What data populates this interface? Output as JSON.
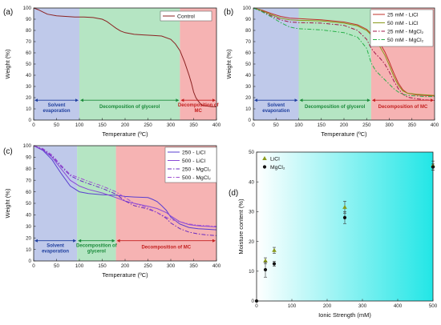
{
  "chart_data": [
    {
      "type": "line",
      "panel_label": "(a)",
      "xlabel": "Temperature (ºC)",
      "ylabel": "Weight (%)",
      "xlim": [
        0,
        400
      ],
      "ylim": [
        0,
        100
      ],
      "xticks": [
        0,
        50,
        100,
        150,
        200,
        250,
        300,
        350,
        400
      ],
      "yticks": [
        0,
        10,
        20,
        30,
        40,
        50,
        60,
        70,
        80,
        90,
        100
      ],
      "legend_position": "top-right",
      "regions": [
        {
          "label": "Solvent evaporation",
          "from": 0,
          "to": 100,
          "color": "#b4bfe6",
          "text_color": "#1f3f9e"
        },
        {
          "label": "Decomposition of glycerol",
          "from": 100,
          "to": 320,
          "color": "#a8e0b8",
          "text_color": "#1a8a3a"
        },
        {
          "label": "Decomposition of MC",
          "from": 320,
          "to": 400,
          "color": "#f4a6a6",
          "text_color": "#c42020"
        }
      ],
      "series": [
        {
          "name": "Control",
          "color": "#8b2222",
          "dash": "",
          "x": [
            0,
            10,
            20,
            30,
            50,
            70,
            90,
            110,
            130,
            150,
            160,
            170,
            180,
            190,
            200,
            220,
            240,
            260,
            280,
            300,
            310,
            320,
            330,
            340,
            345,
            350,
            355,
            360,
            365,
            370,
            380,
            390,
            400
          ],
          "y": [
            100,
            98.5,
            96.5,
            94.5,
            93,
            92.5,
            92,
            92,
            91.5,
            90,
            88,
            85,
            82,
            79.5,
            78,
            76.5,
            76,
            75.5,
            75,
            72,
            68,
            62,
            52,
            40,
            33,
            25,
            20,
            17,
            14.5,
            13,
            12.5,
            12,
            12
          ]
        }
      ]
    },
    {
      "type": "line",
      "panel_label": "(b)",
      "xlabel": "Temperature (ºC)",
      "ylabel": "Weight (%)",
      "xlim": [
        0,
        400
      ],
      "ylim": [
        0,
        100
      ],
      "xticks": [
        0,
        50,
        100,
        150,
        200,
        250,
        300,
        350,
        400
      ],
      "yticks": [
        0,
        10,
        20,
        30,
        40,
        50,
        60,
        70,
        80,
        90,
        100
      ],
      "legend_position": "top-right",
      "regions": [
        {
          "label": "Solvent evaporation",
          "from": 0,
          "to": 100,
          "color": "#b4bfe6",
          "text_color": "#1f3f9e"
        },
        {
          "label": "Decomposition of glycerol",
          "from": 100,
          "to": 260,
          "color": "#a8e0b8",
          "text_color": "#1a8a3a"
        },
        {
          "label": "Decomposition of MC",
          "from": 260,
          "to": 400,
          "color": "#f4a6a6",
          "text_color": "#c42020"
        }
      ],
      "series": [
        {
          "name": "25 mM - LiCl",
          "color": "#c0302a",
          "dash": "",
          "x": [
            0,
            20,
            40,
            60,
            80,
            100,
            150,
            200,
            230,
            250,
            260,
            270,
            280,
            290,
            300,
            310,
            320,
            330,
            340,
            360,
            380,
            400
          ],
          "y": [
            100,
            98,
            95,
            92.5,
            91,
            90.5,
            89.5,
            87.5,
            85,
            81,
            77,
            73,
            68,
            61,
            52,
            42,
            33,
            27,
            24,
            22.5,
            22,
            21.5
          ]
        },
        {
          "name": "50 mM - LiCl",
          "color": "#8a9a1a",
          "dash": "",
          "x": [
            0,
            20,
            40,
            60,
            80,
            100,
            150,
            200,
            230,
            250,
            260,
            270,
            280,
            290,
            300,
            310,
            320,
            330,
            340,
            360,
            380,
            400
          ],
          "y": [
            100,
            97.5,
            94,
            91,
            89.5,
            89,
            88.5,
            86.5,
            84,
            80,
            76,
            71,
            65,
            58,
            49,
            39,
            31,
            26,
            24,
            23,
            22.5,
            22
          ]
        },
        {
          "name": "25 mM - MgCl₂",
          "color": "#a01a4a",
          "dash": "5,2,1.5,2",
          "x": [
            0,
            20,
            40,
            60,
            80,
            100,
            150,
            200,
            230,
            250,
            260,
            270,
            280,
            290,
            300,
            310,
            320,
            330,
            340,
            360,
            380,
            400
          ],
          "y": [
            100,
            97,
            93,
            89.5,
            87.5,
            87,
            86.5,
            84.5,
            80,
            72,
            64,
            59,
            55,
            50,
            43,
            35,
            28,
            23,
            20.5,
            19,
            18,
            17.5
          ]
        },
        {
          "name": "50 mM - MgCl₂",
          "color": "#2ab04a",
          "dash": "5,2,1.5,2",
          "x": [
            0,
            20,
            40,
            60,
            80,
            100,
            150,
            200,
            230,
            250,
            260,
            270,
            280,
            290,
            300,
            310,
            320,
            330,
            340,
            360,
            380,
            400
          ],
          "y": [
            100,
            96.5,
            92,
            87,
            83,
            81.5,
            80.5,
            78,
            74,
            64,
            51,
            44,
            40,
            36,
            32,
            28,
            25,
            23,
            22,
            21.5,
            21,
            21
          ]
        }
      ]
    },
    {
      "type": "line",
      "panel_label": "(c)",
      "xlabel": "Temperature (ºC)",
      "ylabel": "Weight (%)",
      "xlim": [
        0,
        400
      ],
      "ylim": [
        0,
        100
      ],
      "xticks": [
        0,
        50,
        100,
        150,
        200,
        250,
        300,
        350,
        400
      ],
      "yticks": [
        0,
        10,
        20,
        30,
        40,
        50,
        60,
        70,
        80,
        90,
        100
      ],
      "legend_position": "top-right",
      "regions": [
        {
          "label": "Solvent evaporation",
          "from": 0,
          "to": 95,
          "color": "#b4bfe6",
          "text_color": "#1f3f9e"
        },
        {
          "label": "Decomposition of glycerol",
          "from": 95,
          "to": 180,
          "color": "#a8e0b8",
          "text_color": "#1a8a3a"
        },
        {
          "label": "Decomposition of MC",
          "from": 180,
          "to": 400,
          "color": "#f4a6a6",
          "text_color": "#c42020"
        }
      ],
      "series": [
        {
          "name": "250 - LiCl",
          "color": "#5a3fd0",
          "dash": "",
          "x": [
            0,
            20,
            40,
            60,
            80,
            100,
            120,
            150,
            180,
            200,
            220,
            250,
            260,
            270,
            280,
            290,
            300,
            320,
            340,
            360,
            380,
            400
          ],
          "y": [
            100,
            96,
            88,
            76,
            65,
            60,
            58.5,
            57.5,
            57,
            56,
            55.5,
            55,
            53.5,
            51.5,
            48,
            44,
            38,
            32,
            29,
            28,
            27.5,
            27
          ]
        },
        {
          "name": "500 - LiCl",
          "color": "#8a4ad6",
          "dash": "",
          "x": [
            0,
            20,
            40,
            60,
            80,
            100,
            120,
            150,
            180,
            200,
            220,
            250,
            270,
            290,
            300,
            320,
            340,
            360,
            380,
            400
          ],
          "y": [
            100,
            96.5,
            90,
            80,
            70,
            65,
            62,
            59,
            55,
            52,
            50,
            47.5,
            45.5,
            42,
            39,
            34,
            31.5,
            30.5,
            30,
            29.5
          ]
        },
        {
          "name": "250 - MgCl₂",
          "color": "#6a2ac0",
          "dash": "5,2,1.5,2",
          "x": [
            0,
            20,
            40,
            60,
            80,
            100,
            120,
            150,
            180,
            200,
            220,
            250,
            270,
            290,
            300,
            320,
            340,
            360,
            380,
            400
          ],
          "y": [
            100,
            97,
            91,
            82,
            74,
            70,
            67,
            63,
            58,
            52,
            48,
            45,
            42,
            37,
            33,
            28,
            25,
            23.5,
            22.5,
            22
          ]
        },
        {
          "name": "500 - MgCl₂",
          "color": "#a050d0",
          "dash": "5,2,1.5,2",
          "x": [
            0,
            20,
            40,
            60,
            80,
            100,
            120,
            150,
            180,
            200,
            220,
            250,
            270,
            290,
            300,
            320,
            340,
            360,
            380,
            400
          ],
          "y": [
            100,
            97.5,
            92,
            83,
            75,
            72,
            69,
            65,
            60,
            55,
            50,
            46,
            42,
            38,
            36,
            34,
            32,
            31,
            30.5,
            30
          ]
        }
      ]
    },
    {
      "type": "scatter",
      "panel_label": "(d)",
      "xlabel": "Ionic Strength (mM)",
      "ylabel": "Moisture content (%)",
      "xlim": [
        0,
        500
      ],
      "ylim": [
        0,
        50
      ],
      "xticks": [
        0,
        100,
        200,
        300,
        400,
        500
      ],
      "yticks": [
        0,
        10,
        20,
        30,
        40,
        50
      ],
      "legend_position": "top-left",
      "background": [
        "#ffffff",
        "#22e6e6"
      ],
      "series": [
        {
          "name": "LiCl",
          "marker": "triangle",
          "color": "#8a9a1a",
          "x": [
            25,
            50,
            250,
            500
          ],
          "y": [
            13.5,
            17,
            31.5,
            45.5
          ],
          "err": [
            1,
            1,
            2,
            1.5
          ]
        },
        {
          "name": "MgCl₂",
          "marker": "circle",
          "color": "#111111",
          "x": [
            0,
            25,
            50,
            250,
            500
          ],
          "y": [
            0,
            10.5,
            12.5,
            28,
            45
          ],
          "err": [
            0,
            2.5,
            0.8,
            2,
            1
          ]
        }
      ]
    }
  ]
}
